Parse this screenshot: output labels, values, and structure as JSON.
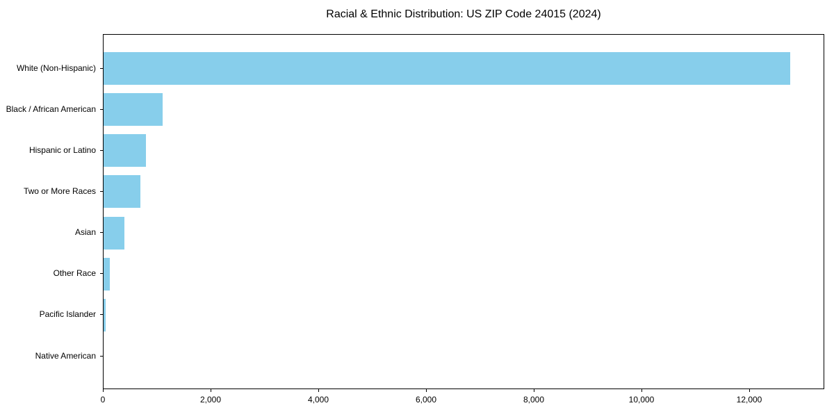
{
  "chart_data": {
    "type": "bar",
    "orientation": "horizontal",
    "title": "Racial & Ethnic Distribution: US ZIP Code 24015 (2024)",
    "categories": [
      "White (Non-Hispanic)",
      "Black / African American",
      "Hispanic or Latino",
      "Two or More Races",
      "Asian",
      "Other Race",
      "Pacific Islander",
      "Native American"
    ],
    "values": [
      12750,
      1100,
      790,
      690,
      385,
      110,
      40,
      0
    ],
    "xlabel": "",
    "ylabel": "",
    "xlim": [
      0,
      13390
    ],
    "xticks": [
      0,
      2000,
      4000,
      6000,
      8000,
      10000,
      12000
    ],
    "xtick_labels": [
      "0",
      "2,000",
      "4,000",
      "6,000",
      "8,000",
      "10,000",
      "12,000"
    ],
    "bar_color": "#87CEEB",
    "background_color": "#ffffff",
    "frame_color": "#000000",
    "grid": false,
    "legend": "none"
  }
}
